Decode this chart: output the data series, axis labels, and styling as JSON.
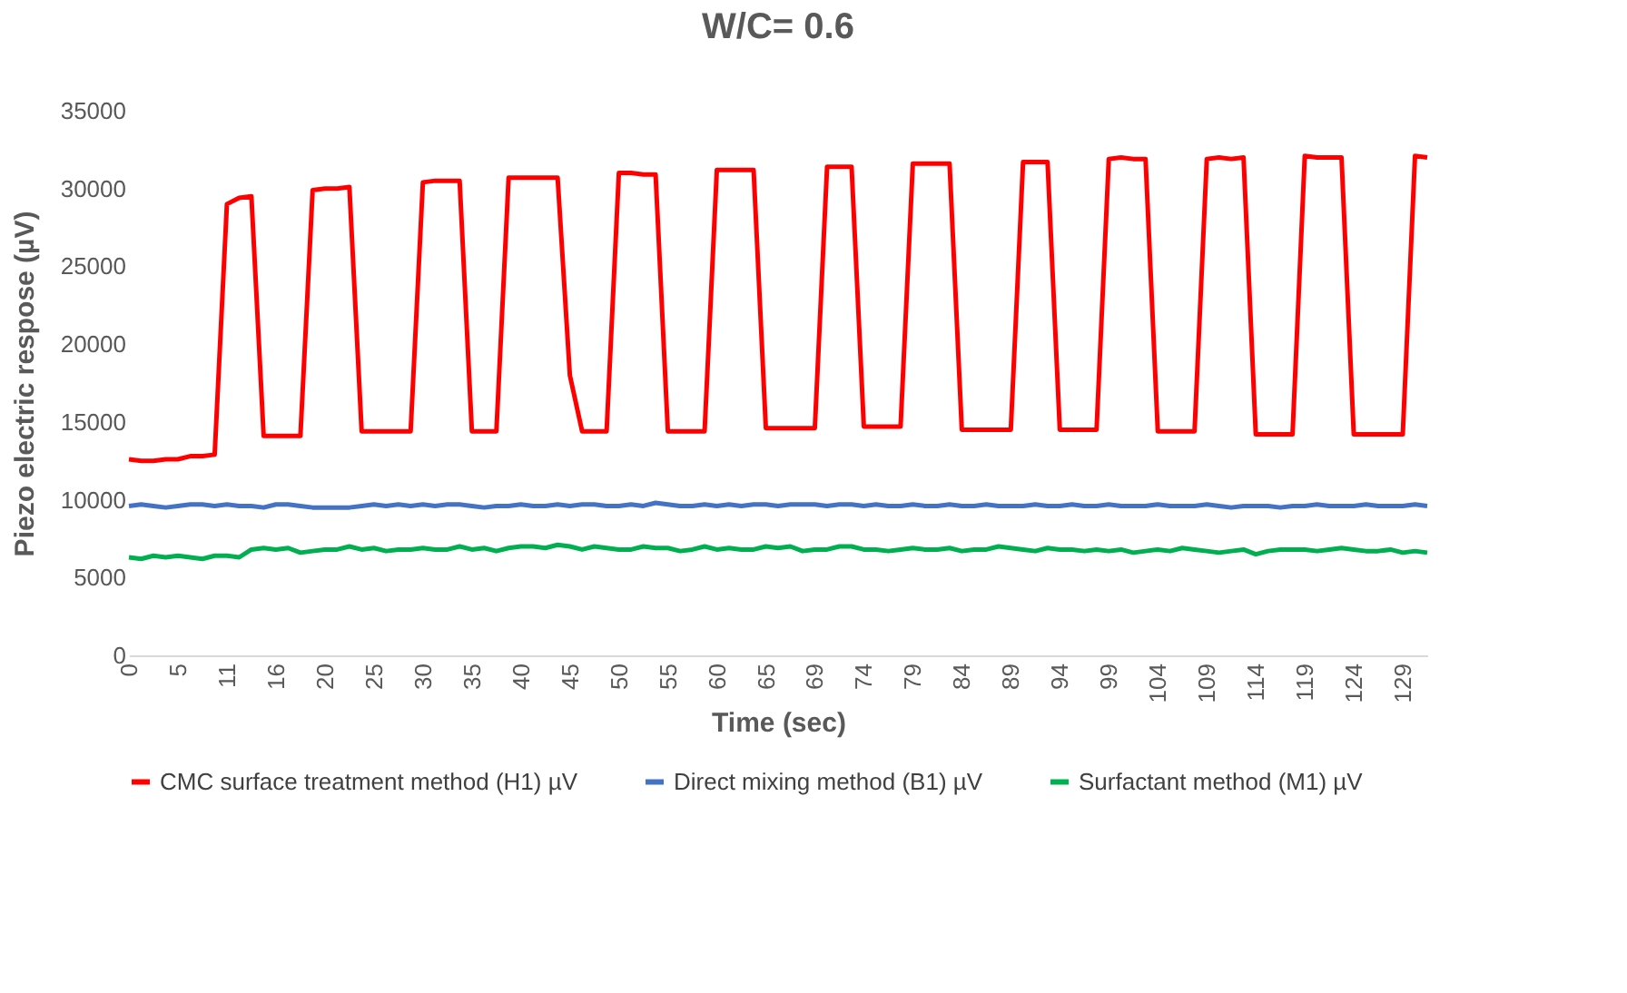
{
  "chart_data": {
    "type": "line",
    "title": "W/C= 0.6",
    "xlabel": "Time (sec)",
    "ylabel": "Piezo electric respose (µV)",
    "categories": [
      "0",
      null,
      null,
      null,
      "5",
      null,
      null,
      null,
      "11",
      null,
      null,
      null,
      "16",
      null,
      null,
      null,
      "20",
      null,
      null,
      null,
      "25",
      null,
      null,
      null,
      "30",
      null,
      null,
      null,
      "35",
      null,
      null,
      null,
      "40",
      null,
      null,
      null,
      "45",
      null,
      null,
      null,
      "50",
      null,
      null,
      null,
      "55",
      null,
      null,
      null,
      "60",
      null,
      null,
      null,
      "65",
      null,
      null,
      null,
      "69",
      null,
      null,
      null,
      "74",
      null,
      null,
      null,
      "79",
      null,
      null,
      null,
      "84",
      null,
      null,
      null,
      "89",
      null,
      null,
      null,
      "94",
      null,
      null,
      null,
      "99",
      null,
      null,
      null,
      "104",
      null,
      null,
      null,
      "109",
      null,
      null,
      null,
      "114",
      null,
      null,
      null,
      "119",
      null,
      null,
      null,
      "124",
      null,
      null,
      null,
      "129",
      null,
      null
    ],
    "ylim": [
      0,
      35000
    ],
    "yticks": [
      0,
      5000,
      10000,
      15000,
      20000,
      25000,
      30000,
      35000
    ],
    "grid": false,
    "legend": "bottom",
    "line_style": "solid",
    "marker": "none",
    "series": [
      {
        "name": "CMC surface treatment method (H1) µV",
        "color": "#ff0000",
        "values": [
          12600,
          12500,
          12500,
          12600,
          12600,
          12800,
          12800,
          12900,
          29000,
          29400,
          29500,
          14100,
          14100,
          14100,
          14100,
          29900,
          30000,
          30000,
          30100,
          14400,
          14400,
          14400,
          14400,
          14400,
          30400,
          30500,
          30500,
          30500,
          14400,
          14400,
          14400,
          30700,
          30700,
          30700,
          30700,
          30700,
          18000,
          14400,
          14400,
          14400,
          31000,
          31000,
          30900,
          30900,
          14400,
          14400,
          14400,
          14400,
          31200,
          31200,
          31200,
          31200,
          14600,
          14600,
          14600,
          14600,
          14600,
          31400,
          31400,
          31400,
          14700,
          14700,
          14700,
          14700,
          31600,
          31600,
          31600,
          31600,
          14500,
          14500,
          14500,
          14500,
          14500,
          31700,
          31700,
          31700,
          14500,
          14500,
          14500,
          14500,
          31900,
          32000,
          31900,
          31900,
          14400,
          14400,
          14400,
          14400,
          31900,
          32000,
          31900,
          32000,
          14200,
          14200,
          14200,
          14200,
          32100,
          32000,
          32000,
          32000,
          14200,
          14200,
          14200,
          14200,
          14200,
          32100,
          32000
        ]
      },
      {
        "name": "Direct mixing method (B1) µV",
        "color": "#4472c4",
        "values": [
          9600,
          9700,
          9600,
          9500,
          9600,
          9700,
          9700,
          9600,
          9700,
          9600,
          9600,
          9500,
          9700,
          9700,
          9600,
          9500,
          9500,
          9500,
          9500,
          9600,
          9700,
          9600,
          9700,
          9600,
          9700,
          9600,
          9700,
          9700,
          9600,
          9500,
          9600,
          9600,
          9700,
          9600,
          9600,
          9700,
          9600,
          9700,
          9700,
          9600,
          9600,
          9700,
          9600,
          9800,
          9700,
          9600,
          9600,
          9700,
          9600,
          9700,
          9600,
          9700,
          9700,
          9600,
          9700,
          9700,
          9700,
          9600,
          9700,
          9700,
          9600,
          9700,
          9600,
          9600,
          9700,
          9600,
          9600,
          9700,
          9600,
          9600,
          9700,
          9600,
          9600,
          9600,
          9700,
          9600,
          9600,
          9700,
          9600,
          9600,
          9700,
          9600,
          9600,
          9600,
          9700,
          9600,
          9600,
          9600,
          9700,
          9600,
          9500,
          9600,
          9600,
          9600,
          9500,
          9600,
          9600,
          9700,
          9600,
          9600,
          9600,
          9700,
          9600,
          9600,
          9600,
          9700,
          9600
        ]
      },
      {
        "name": "Surfactant method (M1) µV",
        "color": "#00b050",
        "values": [
          6300,
          6200,
          6400,
          6300,
          6400,
          6300,
          6200,
          6400,
          6400,
          6300,
          6800,
          6900,
          6800,
          6900,
          6600,
          6700,
          6800,
          6800,
          7000,
          6800,
          6900,
          6700,
          6800,
          6800,
          6900,
          6800,
          6800,
          7000,
          6800,
          6900,
          6700,
          6900,
          7000,
          7000,
          6900,
          7100,
          7000,
          6800,
          7000,
          6900,
          6800,
          6800,
          7000,
          6900,
          6900,
          6700,
          6800,
          7000,
          6800,
          6900,
          6800,
          6800,
          7000,
          6900,
          7000,
          6700,
          6800,
          6800,
          7000,
          7000,
          6800,
          6800,
          6700,
          6800,
          6900,
          6800,
          6800,
          6900,
          6700,
          6800,
          6800,
          7000,
          6900,
          6800,
          6700,
          6900,
          6800,
          6800,
          6700,
          6800,
          6700,
          6800,
          6600,
          6700,
          6800,
          6700,
          6900,
          6800,
          6700,
          6600,
          6700,
          6800,
          6500,
          6700,
          6800,
          6800,
          6800,
          6700,
          6800,
          6900,
          6800,
          6700,
          6700,
          6800,
          6600,
          6700,
          6600
        ]
      }
    ]
  }
}
